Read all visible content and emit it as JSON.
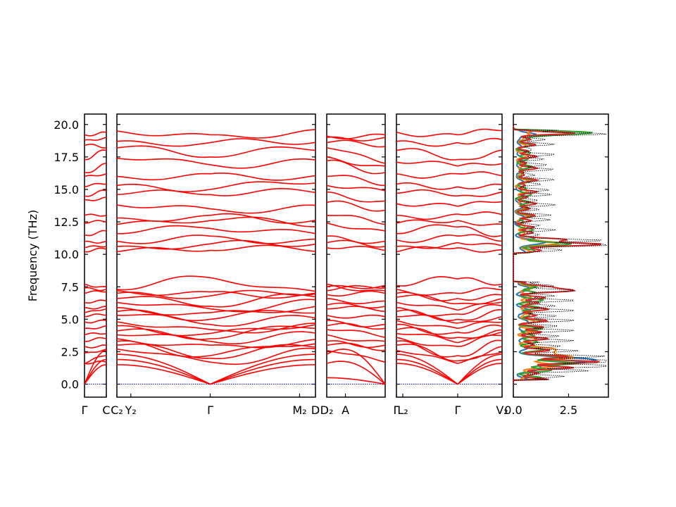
{
  "chart_data": {
    "type": "line",
    "title": "",
    "ylabel": "Frequency (THz)",
    "ylim": [
      -1.0,
      20.8
    ],
    "yticks": [
      "0.0",
      "2.5",
      "5.0",
      "7.5",
      "10.0",
      "12.5",
      "15.0",
      "17.5",
      "20.0"
    ],
    "ytick_values": [
      0.0,
      2.5,
      5.0,
      7.5,
      10.0,
      12.5,
      15.0,
      17.5,
      20.0
    ],
    "line_color": "#ff0000",
    "zero_line_color": "#0000cc",
    "band_segments": [
      {
        "x_labels": [
          "Γ",
          "C"
        ],
        "sub_segments": [
          {
            "from": 0.0,
            "to": 1.0,
            "bands_start": [
              0.0,
              0.0,
              0.0,
              1.6,
              1.6,
              2.4,
              2.9,
              3.3,
              3.8,
              4.3,
              4.8,
              5.2,
              5.5,
              5.9,
              6.3,
              7.0,
              7.4,
              7.7,
              10.2,
              10.5,
              11.0,
              11.5,
              12.4,
              13.0,
              14.2,
              14.5,
              15.2,
              16.0,
              16.3,
              17.3,
              18.4,
              18.8,
              19.2
            ],
            "bands_end": [
              1.5,
              1.9,
              2.6,
              1.7,
              2.2,
              2.7,
              3.0,
              3.5,
              3.9,
              4.5,
              4.9,
              5.3,
              5.8,
              6.0,
              6.4,
              7.1,
              7.3,
              7.5,
              10.4,
              10.6,
              11.0,
              11.8,
              12.5,
              13.0,
              14.4,
              14.9,
              15.4,
              16.2,
              17.0,
              18.0,
              18.2,
              19.0,
              19.4
            ]
          }
        ]
      },
      {
        "x_labels": [
          "C₂",
          "Y₂",
          "Γ",
          "M₂",
          "D"
        ],
        "x_label_positions": [
          0.0,
          0.07,
          0.47,
          0.92,
          1.0
        ],
        "bands_gamma": [
          0.0,
          0.0,
          0.0,
          1.7,
          2.0,
          2.2,
          3.0,
          3.3,
          3.5,
          3.9,
          4.2,
          4.6,
          5.0,
          5.5,
          5.8,
          6.0,
          6.8,
          7.1,
          8.2,
          10.3,
          10.8,
          11.4,
          12.0,
          12.6,
          13.0,
          13.5,
          14.6,
          15.0,
          16.2,
          16.9,
          17.5,
          18.6,
          19.2
        ],
        "bands_edge": [
          1.5,
          1.9,
          2.3,
          2.7,
          3.0,
          3.3,
          3.5,
          3.8,
          4.1,
          4.5,
          4.8,
          5.3,
          5.6,
          5.9,
          6.3,
          6.6,
          7.0,
          7.2,
          7.3,
          10.2,
          10.6,
          11.0,
          11.6,
          12.3,
          12.8,
          13.8,
          14.6,
          15.3,
          16.0,
          17.4,
          18.2,
          18.7,
          19.5
        ]
      },
      {
        "x_labels": [
          "D₂",
          "A"
        ],
        "x_label_positions": [
          0.0,
          0.32
        ],
        "bands_start": [
          0.5,
          1.6,
          2.3,
          2.6,
          3.0,
          3.3,
          3.8,
          4.2,
          4.5,
          4.9,
          5.3,
          5.8,
          6.1,
          6.6,
          6.9,
          7.2,
          7.5,
          7.7,
          10.5,
          10.9,
          11.4,
          12.4,
          13.0,
          14.0,
          14.8,
          15.3,
          16.0,
          17.2,
          17.5,
          18.2,
          18.6,
          19.0,
          19.1
        ],
        "bands_end": [
          0.0,
          0.0,
          0.0,
          1.7,
          2.6,
          3.0,
          3.3,
          3.6,
          4.3,
          4.6,
          5.2,
          5.6,
          6.0,
          6.4,
          7.0,
          7.4,
          7.6,
          7.2,
          10.3,
          10.6,
          11.0,
          11.8,
          12.3,
          13.4,
          14.1,
          14.9,
          15.3,
          16.3,
          16.8,
          17.0,
          18.3,
          19.0,
          19.2
        ]
      },
      {
        "x_labels": [
          "Γ",
          "L₂",
          "Γ",
          "V₂"
        ],
        "x_label_positions": [
          0.0,
          0.06,
          0.58,
          1.0
        ],
        "bands_gamma": [
          0.0,
          0.0,
          0.0,
          1.6,
          1.8,
          2.2,
          2.9,
          3.2,
          3.6,
          4.0,
          4.3,
          4.7,
          5.0,
          5.4,
          5.7,
          6.2,
          6.6,
          7.0,
          8.1,
          10.5,
          10.9,
          11.4,
          12.1,
          12.6,
          13.1,
          13.7,
          14.5,
          15.2,
          16.2,
          16.8,
          17.3,
          18.6,
          19.2
        ],
        "bands_edge": [
          1.6,
          1.9,
          2.3,
          2.6,
          3.0,
          3.3,
          3.6,
          3.9,
          4.2,
          4.6,
          4.9,
          5.2,
          5.6,
          5.9,
          6.3,
          6.7,
          7.0,
          7.3,
          7.6,
          10.2,
          10.6,
          11.1,
          11.6,
          12.4,
          13.0,
          13.9,
          14.7,
          15.4,
          16.2,
          17.1,
          18.0,
          18.7,
          19.4
        ]
      }
    ],
    "dos": {
      "x_ticks": [
        "0.0",
        "2.5"
      ],
      "x_tick_values": [
        0.0,
        2.5
      ],
      "xlim": [
        0.0,
        4.3
      ],
      "series": [
        {
          "color": "#1f77b4",
          "style": "solid"
        },
        {
          "color": "#ff7f0e",
          "style": "solid"
        },
        {
          "color": "#2ca02c",
          "style": "solid"
        },
        {
          "color": "#d62728",
          "style": "solid"
        },
        {
          "color": "#000000",
          "style": "dotted"
        }
      ]
    }
  }
}
